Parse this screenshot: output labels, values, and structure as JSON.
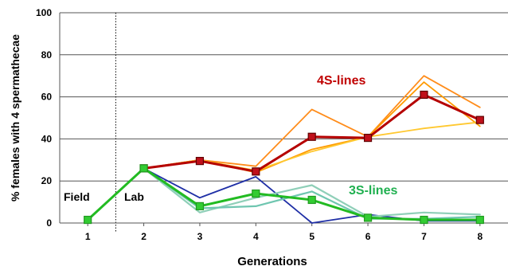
{
  "chart_data": {
    "type": "line",
    "title": "",
    "xlabel": "Generations",
    "ylabel": "% females with 4 spermathecae",
    "x": [
      1,
      2,
      3,
      4,
      5,
      6,
      7,
      8
    ],
    "xlim": [
      0.5,
      8.5
    ],
    "ylim": [
      0,
      100
    ],
    "yticks": [
      "0",
      "20",
      "40",
      "60",
      "80",
      "100"
    ],
    "xticks": [
      "1",
      "2",
      "3",
      "4",
      "5",
      "6",
      "7",
      "8"
    ],
    "grid": "horizontal",
    "divider_x": 1.5,
    "annotations": {
      "field": "Field",
      "lab": "Lab",
      "lines4s": "4S-lines",
      "lines3s": "3S-lines"
    },
    "colors": {
      "lines4s_label": "#c00000",
      "lines3s_label": "#20b050",
      "mean4s": "#b50000",
      "mean3s": "#22bb22"
    },
    "series": [
      {
        "color": "#ff8c1a",
        "width": 1.8,
        "marker": "none",
        "values": [
          null,
          26,
          30,
          27,
          54,
          41,
          70,
          55
        ]
      },
      {
        "color": "#ff9a00",
        "width": 1.8,
        "marker": "none",
        "values": [
          null,
          26,
          30,
          24,
          35,
          41,
          67,
          46
        ]
      },
      {
        "color": "#ffc830",
        "width": 1.8,
        "marker": "none",
        "values": [
          null,
          26,
          30,
          25,
          34,
          41,
          45,
          48
        ]
      },
      {
        "color": "#1f2fa6",
        "width": 1.8,
        "marker": "none",
        "values": [
          null,
          26,
          12,
          22,
          0,
          4,
          1,
          1
        ]
      },
      {
        "color": "#8fcfb8",
        "width": 2.2,
        "marker": "none",
        "values": [
          null,
          26,
          5,
          12,
          18,
          3,
          5,
          4
        ]
      },
      {
        "color": "#6fc6b0",
        "width": 2.2,
        "marker": "none",
        "values": [
          null,
          26,
          7,
          8,
          15,
          2,
          2,
          3
        ]
      },
      {
        "color": "#b50000",
        "width": 3,
        "marker": "square",
        "markerFill": "#c0101a",
        "markerStroke": "#600000",
        "values": [
          null,
          26,
          29.5,
          24.5,
          41,
          40.5,
          61,
          49
        ]
      },
      {
        "color": "#22bb22",
        "width": 3,
        "marker": "square",
        "markerFill": "#33cc33",
        "markerStroke": "#1f9a1f",
        "values": [
          1.5,
          26,
          8,
          14,
          11,
          2.5,
          1.5,
          1.5
        ]
      }
    ]
  }
}
